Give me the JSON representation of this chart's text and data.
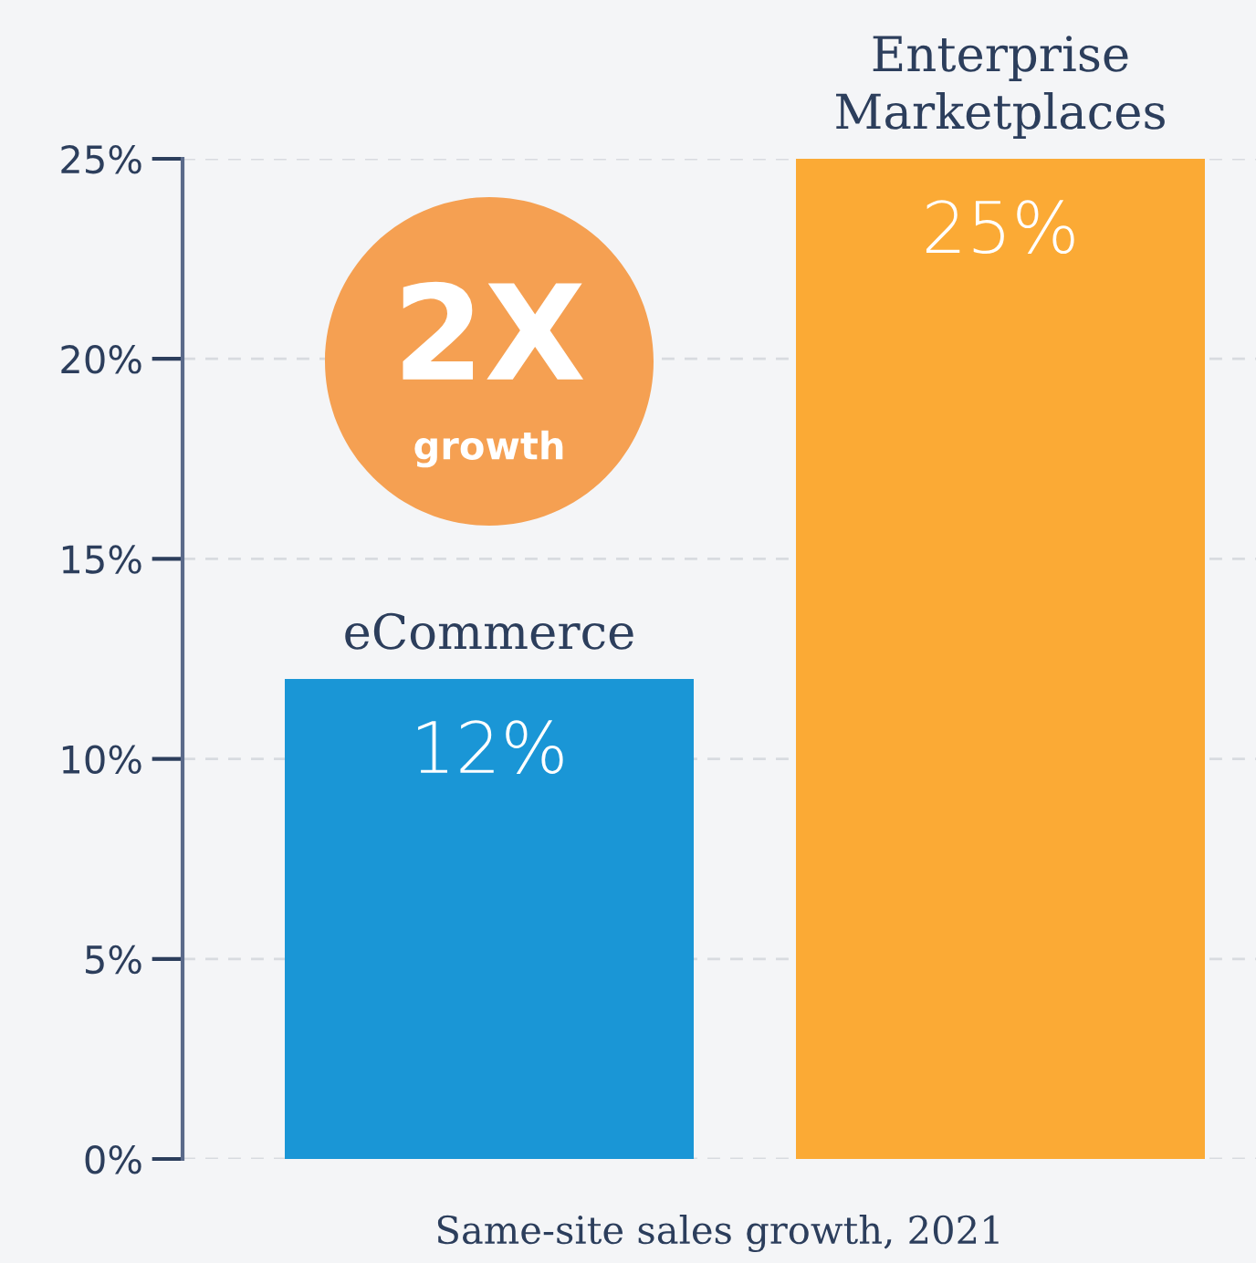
{
  "chart_data": {
    "type": "bar",
    "xlabel": "Same-site sales growth, 2021",
    "categories": [
      "eCommerce",
      "Enterprise\nMarketplaces"
    ],
    "values": [
      12,
      25
    ],
    "colors": [
      "#1a96d6",
      "#fbaa35"
    ],
    "value_labels": [
      "12%",
      "25%"
    ],
    "ylim": [
      0,
      25
    ],
    "yticks": [
      {
        "value": 0,
        "label": "0%"
      },
      {
        "value": 5,
        "label": "5%"
      },
      {
        "value": 10,
        "label": "10%"
      },
      {
        "value": 15,
        "label": "15%"
      },
      {
        "value": 20,
        "label": "20%"
      },
      {
        "value": 25,
        "label": "25%"
      }
    ],
    "grid": "y",
    "tick_labels": "y",
    "annotations": [
      "2X",
      "growth"
    ]
  }
}
